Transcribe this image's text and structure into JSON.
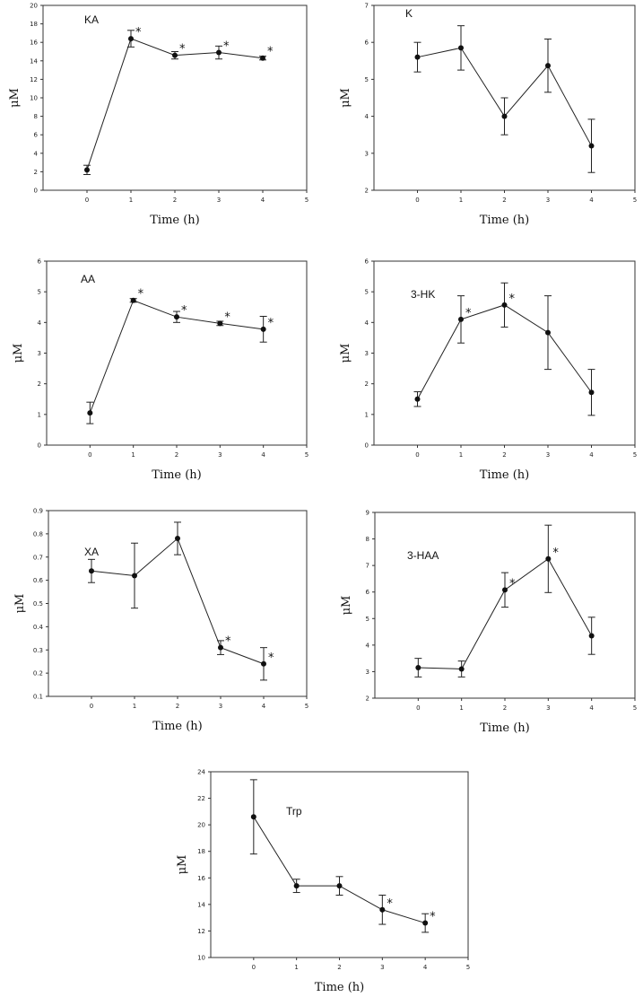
{
  "figure": {
    "line_color": "#222222",
    "marker_color": "#111111",
    "background": "#ffffff"
  },
  "chart_data": [
    {
      "type": "line",
      "panel_label": "KA",
      "xlabel": "Time (h)",
      "ylabel": "μM",
      "xlim": [
        -1,
        5
      ],
      "ylim": [
        0,
        20
      ],
      "xticks": [
        0,
        1,
        2,
        3,
        4,
        5
      ],
      "yticks": [
        0,
        2,
        4,
        6,
        8,
        10,
        12,
        14,
        16,
        18,
        20
      ],
      "series": [
        {
          "x": [
            0,
            1,
            2,
            3,
            4
          ],
          "y": [
            2.2,
            16.4,
            14.6,
            14.9,
            14.3
          ],
          "error": [
            0.5,
            0.9,
            0.4,
            0.7,
            0.2
          ],
          "significant": [
            false,
            true,
            true,
            true,
            true
          ]
        }
      ]
    },
    {
      "type": "line",
      "panel_label": "K",
      "xlabel": "Time (h)",
      "ylabel": "μM",
      "xlim": [
        -1,
        5
      ],
      "ylim": [
        2,
        7
      ],
      "xticks": [
        0,
        1,
        2,
        3,
        4,
        5
      ],
      "yticks": [
        2,
        3,
        4,
        5,
        6,
        7
      ],
      "series": [
        {
          "x": [
            0,
            1,
            2,
            3,
            4
          ],
          "y": [
            5.6,
            5.85,
            4.0,
            5.37,
            3.2
          ],
          "error": [
            0.4,
            0.6,
            0.5,
            0.72,
            0.72
          ],
          "significant": [
            false,
            false,
            false,
            false,
            false
          ]
        }
      ]
    },
    {
      "type": "line",
      "panel_label": "AA",
      "xlabel": "Time (h)",
      "ylabel": "μM",
      "xlim": [
        -1,
        5
      ],
      "ylim": [
        0,
        6
      ],
      "xticks": [
        0,
        1,
        2,
        3,
        4,
        5
      ],
      "yticks": [
        0,
        1,
        2,
        3,
        4,
        5,
        6
      ],
      "series": [
        {
          "x": [
            0,
            1,
            2,
            3,
            4
          ],
          "y": [
            1.05,
            4.72,
            4.18,
            3.97,
            3.78
          ],
          "error": [
            0.35,
            0.06,
            0.18,
            0.07,
            0.42
          ],
          "significant": [
            false,
            true,
            true,
            true,
            true
          ]
        }
      ]
    },
    {
      "type": "line",
      "panel_label": "3-HK",
      "xlabel": "Time (h)",
      "ylabel": "μM",
      "xlim": [
        -1,
        5
      ],
      "ylim": [
        0,
        6
      ],
      "xticks": [
        0,
        1,
        2,
        3,
        4,
        5
      ],
      "yticks": [
        0,
        1,
        2,
        3,
        4,
        5,
        6
      ],
      "series": [
        {
          "x": [
            0,
            1,
            2,
            3,
            4
          ],
          "y": [
            1.5,
            4.1,
            4.57,
            3.67,
            1.72
          ],
          "error": [
            0.24,
            0.77,
            0.72,
            1.2,
            0.75
          ],
          "significant": [
            false,
            true,
            true,
            false,
            false
          ]
        }
      ]
    },
    {
      "type": "line",
      "panel_label": "XA",
      "xlabel": "Time (h)",
      "ylabel": "μM",
      "xlim": [
        -1,
        5
      ],
      "ylim": [
        0.1,
        0.9
      ],
      "xticks": [
        0,
        1,
        2,
        3,
        4,
        5
      ],
      "yticks": [
        0.1,
        0.2,
        0.3,
        0.4,
        0.5,
        0.6,
        0.7,
        0.8,
        0.9
      ],
      "series": [
        {
          "x": [
            0,
            1,
            2,
            3,
            4
          ],
          "y": [
            0.64,
            0.62,
            0.78,
            0.31,
            0.24
          ],
          "error": [
            0.05,
            0.14,
            0.07,
            0.03,
            0.07
          ],
          "significant": [
            false,
            false,
            false,
            true,
            true
          ]
        }
      ]
    },
    {
      "type": "line",
      "panel_label": "3-HAA",
      "xlabel": "Time (h)",
      "ylabel": "μM",
      "xlim": [
        -1,
        5
      ],
      "ylim": [
        2,
        9
      ],
      "xticks": [
        0,
        1,
        2,
        3,
        4,
        5
      ],
      "yticks": [
        2,
        3,
        4,
        5,
        6,
        7,
        8,
        9
      ],
      "series": [
        {
          "x": [
            0,
            1,
            2,
            3,
            4
          ],
          "y": [
            3.15,
            3.1,
            6.08,
            7.25,
            4.35
          ],
          "error": [
            0.35,
            0.3,
            0.65,
            1.27,
            0.7
          ],
          "significant": [
            false,
            false,
            true,
            true,
            false
          ]
        }
      ]
    },
    {
      "type": "line",
      "panel_label": "Trp",
      "xlabel": "Time (h)",
      "ylabel": "μM",
      "xlim": [
        -1,
        5
      ],
      "ylim": [
        10,
        24
      ],
      "xticks": [
        0,
        1,
        2,
        3,
        4,
        5
      ],
      "yticks": [
        10,
        12,
        14,
        16,
        18,
        20,
        22,
        24
      ],
      "series": [
        {
          "x": [
            0,
            1,
            2,
            3,
            4
          ],
          "y": [
            20.6,
            15.4,
            15.4,
            13.6,
            12.6
          ],
          "error": [
            2.8,
            0.5,
            0.7,
            1.1,
            0.7
          ],
          "significant": [
            false,
            false,
            false,
            true,
            true
          ]
        }
      ]
    }
  ]
}
